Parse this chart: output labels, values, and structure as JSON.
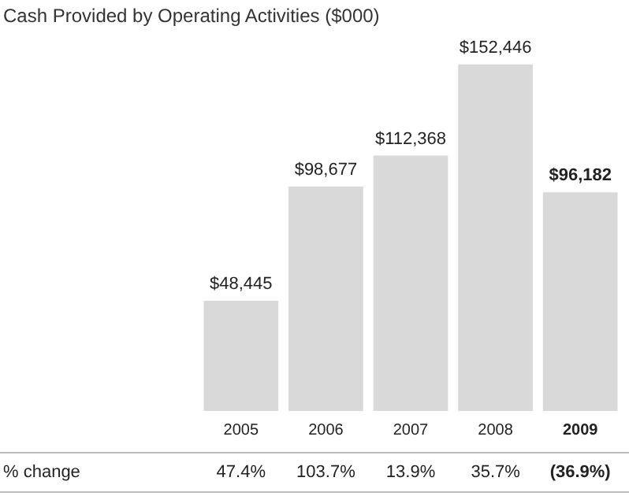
{
  "chart_data": {
    "type": "bar",
    "title": "Cash Provided by Operating Activities ($000)",
    "categories": [
      "2005",
      "2006",
      "2007",
      "2008",
      "2009"
    ],
    "values": [
      48445,
      98677,
      112368,
      152446,
      96182
    ],
    "color": "#d9d9d9",
    "value_labels": [
      "$48,445",
      "$98,677",
      "$112,368",
      "$152,446",
      "$96,182"
    ],
    "annotations": [
      "% change",
      "47.4%",
      "103.7%",
      "13.9%",
      "35.7%",
      "(36.9%)"
    ]
  }
}
